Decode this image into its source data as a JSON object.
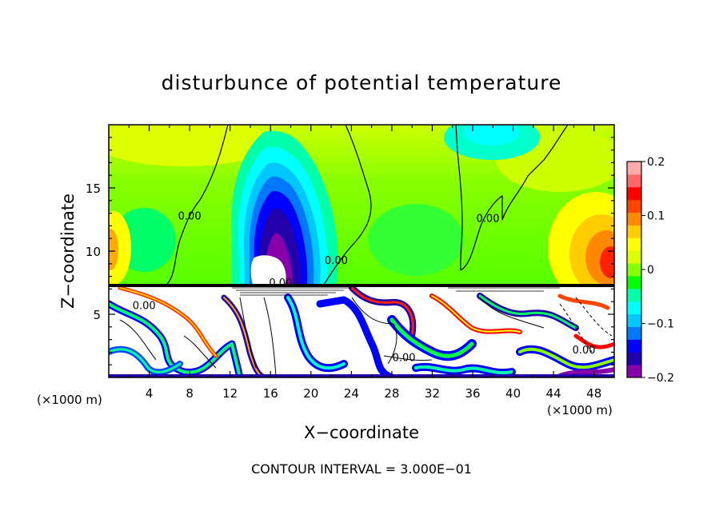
{
  "chart_data": {
    "type": "heatmap",
    "title": "disturbunce of potential temperature",
    "xlabel": "X−coordinate",
    "ylabel": "Z−coordinate",
    "x_unit_left": "(×1000 m)",
    "x_unit_right": "(×1000 m)",
    "xlim": [
      0,
      50
    ],
    "ylim": [
      0,
      20
    ],
    "x_ticks": [
      4,
      8,
      12,
      16,
      20,
      24,
      28,
      32,
      36,
      40,
      44,
      48
    ],
    "x_tick_labels": [
      "4",
      "8",
      "12",
      "16",
      "20",
      "24",
      "28",
      "32",
      "36",
      "40",
      "44",
      "48"
    ],
    "y_ticks": [
      5,
      10,
      15
    ],
    "y_tick_labels": [
      "5",
      "10",
      "15"
    ],
    "colorbar": {
      "range": [
        -0.2,
        0.2
      ],
      "ticks": [
        0.2,
        0.1,
        0,
        -0.1,
        -0.2
      ],
      "tick_labels": [
        "0.2",
        "0.1",
        "0",
        "−0.1",
        "−0.2"
      ],
      "colors": [
        "#8800aa",
        "#2200aa",
        "#0000ff",
        "#0077ff",
        "#00c8ff",
        "#00ffff",
        "#00ffaa",
        "#00ff00",
        "#88ff00",
        "#ddff00",
        "#ffff00",
        "#ffcc00",
        "#ff8800",
        "#ff4400",
        "#ff0000",
        "#ff6666",
        "#ffaaaa"
      ]
    },
    "contour_labels": [
      {
        "text": "0.00",
        "x": 17.0,
        "y": 7.2
      },
      {
        "text": "0.00",
        "x": 22.5,
        "y": 9.0
      },
      {
        "text": "0.00",
        "x": 8.0,
        "y": 12.5
      },
      {
        "text": "0.00",
        "x": 37.5,
        "y": 12.3
      },
      {
        "text": "0.00",
        "x": 3.5,
        "y": 5.4
      },
      {
        "text": "0.00",
        "x": 29.2,
        "y": 1.3
      },
      {
        "text": "0.00",
        "x": 47.0,
        "y": 1.9
      }
    ],
    "footer": "CONTOUR INTERVAL = 3.000E−01"
  }
}
